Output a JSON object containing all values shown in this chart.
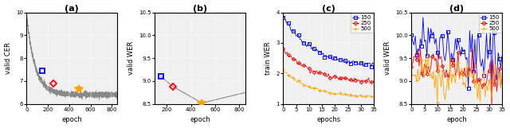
{
  "panel_a": {
    "title": "(a)",
    "xlabel": "epoch",
    "ylabel": "valid CER",
    "ylim": [
      6,
      10
    ],
    "xlim": [
      0,
      850
    ],
    "xticks": [
      0,
      200,
      400,
      600,
      800
    ],
    "yticks": [
      6,
      7,
      8,
      9,
      10
    ],
    "curve_y_floor": 6.4,
    "curve_y_amp": 3.5,
    "curve_tau": 80,
    "curve_noise": 0.06,
    "markers": [
      {
        "epoch": 150,
        "val": 7.45,
        "color": "blue",
        "style": "s",
        "filled": false,
        "ms": 5
      },
      {
        "epoch": 250,
        "val": 6.88,
        "color": "red",
        "style": "D",
        "filled": false,
        "ms": 4
      },
      {
        "epoch": 490,
        "val": 6.65,
        "color": "orange",
        "style": "*",
        "filled": true,
        "ms": 7
      }
    ]
  },
  "panel_b": {
    "title": "(b)",
    "xlabel": "epoch",
    "ylabel": "valid WER",
    "ylim": [
      8.5,
      10.5
    ],
    "xlim": [
      100,
      850
    ],
    "xticks": [
      200,
      400,
      600,
      800
    ],
    "yticks": [
      8.5,
      9.0,
      9.5,
      10.0,
      10.5
    ],
    "markers": [
      {
        "epoch": 150,
        "val": 9.1,
        "color": "blue",
        "style": "s",
        "filled": false,
        "ms": 5
      },
      {
        "epoch": 250,
        "val": 8.88,
        "color": "red",
        "style": "D",
        "filled": false,
        "ms": 4
      },
      {
        "epoch": 490,
        "val": 8.52,
        "color": "orange",
        "style": "*",
        "filled": true,
        "ms": 7
      }
    ],
    "curve_points": [
      [
        150,
        9.1
      ],
      [
        250,
        8.88
      ],
      [
        490,
        8.52
      ],
      [
        850,
        8.75
      ]
    ]
  },
  "panel_c": {
    "title": "(c)",
    "xlabel": "epochs",
    "ylabel": "train WER",
    "ylim": [
      1,
      4
    ],
    "xlim": [
      0,
      35
    ],
    "xticks": [
      0,
      5,
      10,
      15,
      20,
      25,
      30,
      35
    ],
    "yticks": [
      1,
      2,
      3,
      4
    ],
    "series": [
      {
        "label": "150",
        "color": "blue",
        "marker": "s",
        "start": 3.85,
        "end": 2.2,
        "noise": 0.04
      },
      {
        "label": "250",
        "color": "red",
        "marker": "D",
        "start": 2.8,
        "end": 1.68,
        "noise": 0.04
      },
      {
        "label": "500",
        "color": "orange",
        "marker": "+",
        "start": 2.1,
        "end": 1.18,
        "noise": 0.03
      }
    ]
  },
  "panel_d": {
    "title": "(d)",
    "xlabel": "epoch",
    "ylabel": "valid WER",
    "ylim": [
      8.5,
      10.5
    ],
    "xlim": [
      0,
      35
    ],
    "xticks": [
      0,
      5,
      10,
      15,
      20,
      25,
      30,
      35
    ],
    "yticks": [
      8.5,
      9.0,
      9.5,
      10.0,
      10.5
    ],
    "series": [
      {
        "label": "150",
        "color": "blue",
        "marker": "s",
        "base": 9.5,
        "noise": 0.28
      },
      {
        "label": "250",
        "color": "red",
        "marker": "D",
        "base": 9.1,
        "noise": 0.22
      },
      {
        "label": "500",
        "color": "orange",
        "marker": "+",
        "base": 8.85,
        "noise": 0.2
      }
    ]
  },
  "curve_color": "#888888",
  "background_color": "#f0f0f0",
  "title_fontsize": 8,
  "label_fontsize": 6,
  "tick_fontsize": 5,
  "legend_fontsize": 5
}
